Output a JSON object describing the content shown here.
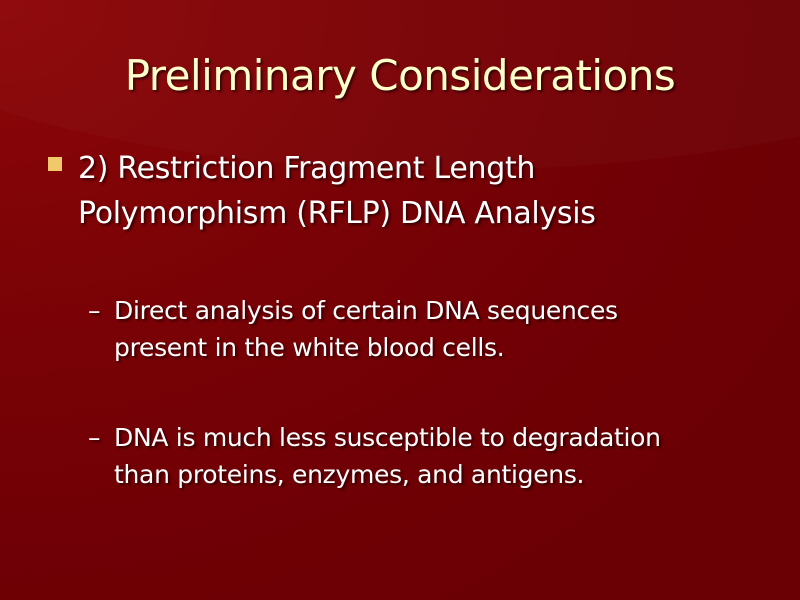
{
  "slide": {
    "title": "Preliminary Considerations",
    "bullet": {
      "line1": "2) Restriction Fragment Length",
      "line2": "Polymorphism (RFLP) DNA Analysis"
    },
    "sub_bullets": [
      {
        "dash": "–",
        "line1": "Direct analysis of certain DNA sequences",
        "line2": "present in the white blood cells."
      },
      {
        "dash": "–",
        "line1": "DNA is much less susceptible to degradation",
        "line2": "than proteins, enzymes, and antigens."
      }
    ]
  },
  "colors": {
    "background": "#7c0306",
    "title": "#ffffcc",
    "body_text": "#ffffff",
    "bullet_marker": "#f2c96a"
  }
}
